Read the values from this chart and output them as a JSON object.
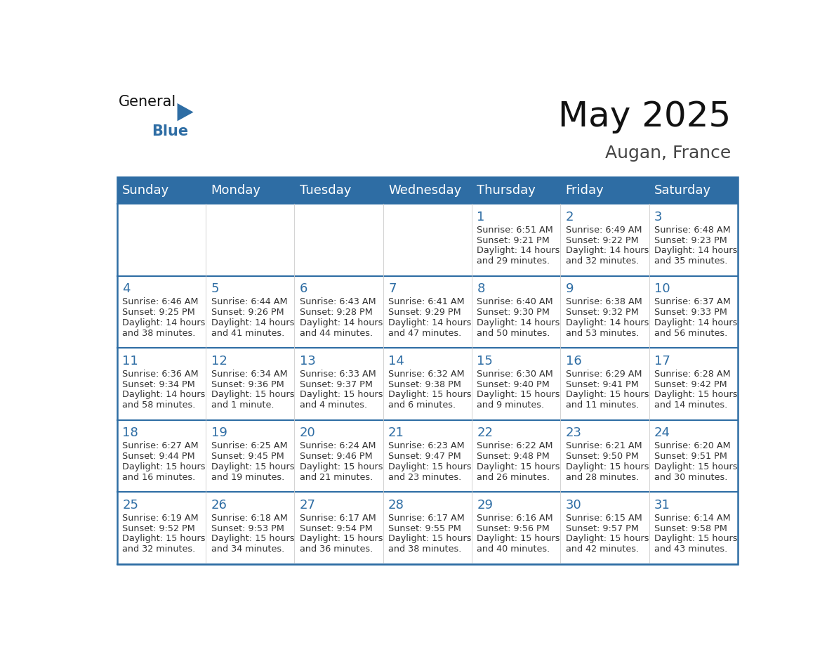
{
  "title": "May 2025",
  "subtitle": "Augan, France",
  "header_color": "#2E6DA4",
  "header_text_color": "#FFFFFF",
  "day_number_color": "#2E6DA4",
  "text_color": "#333333",
  "days_of_week": [
    "Sunday",
    "Monday",
    "Tuesday",
    "Wednesday",
    "Thursday",
    "Friday",
    "Saturday"
  ],
  "weeks": [
    [
      {
        "day": "",
        "sunrise": "",
        "sunset": "",
        "daylight": ""
      },
      {
        "day": "",
        "sunrise": "",
        "sunset": "",
        "daylight": ""
      },
      {
        "day": "",
        "sunrise": "",
        "sunset": "",
        "daylight": ""
      },
      {
        "day": "",
        "sunrise": "",
        "sunset": "",
        "daylight": ""
      },
      {
        "day": "1",
        "sunrise": "6:51 AM",
        "sunset": "9:21 PM",
        "daylight": "14 hours and 29 minutes."
      },
      {
        "day": "2",
        "sunrise": "6:49 AM",
        "sunset": "9:22 PM",
        "daylight": "14 hours and 32 minutes."
      },
      {
        "day": "3",
        "sunrise": "6:48 AM",
        "sunset": "9:23 PM",
        "daylight": "14 hours and 35 minutes."
      }
    ],
    [
      {
        "day": "4",
        "sunrise": "6:46 AM",
        "sunset": "9:25 PM",
        "daylight": "14 hours and 38 minutes."
      },
      {
        "day": "5",
        "sunrise": "6:44 AM",
        "sunset": "9:26 PM",
        "daylight": "14 hours and 41 minutes."
      },
      {
        "day": "6",
        "sunrise": "6:43 AM",
        "sunset": "9:28 PM",
        "daylight": "14 hours and 44 minutes."
      },
      {
        "day": "7",
        "sunrise": "6:41 AM",
        "sunset": "9:29 PM",
        "daylight": "14 hours and 47 minutes."
      },
      {
        "day": "8",
        "sunrise": "6:40 AM",
        "sunset": "9:30 PM",
        "daylight": "14 hours and 50 minutes."
      },
      {
        "day": "9",
        "sunrise": "6:38 AM",
        "sunset": "9:32 PM",
        "daylight": "14 hours and 53 minutes."
      },
      {
        "day": "10",
        "sunrise": "6:37 AM",
        "sunset": "9:33 PM",
        "daylight": "14 hours and 56 minutes."
      }
    ],
    [
      {
        "day": "11",
        "sunrise": "6:36 AM",
        "sunset": "9:34 PM",
        "daylight": "14 hours and 58 minutes."
      },
      {
        "day": "12",
        "sunrise": "6:34 AM",
        "sunset": "9:36 PM",
        "daylight": "15 hours and 1 minute."
      },
      {
        "day": "13",
        "sunrise": "6:33 AM",
        "sunset": "9:37 PM",
        "daylight": "15 hours and 4 minutes."
      },
      {
        "day": "14",
        "sunrise": "6:32 AM",
        "sunset": "9:38 PM",
        "daylight": "15 hours and 6 minutes."
      },
      {
        "day": "15",
        "sunrise": "6:30 AM",
        "sunset": "9:40 PM",
        "daylight": "15 hours and 9 minutes."
      },
      {
        "day": "16",
        "sunrise": "6:29 AM",
        "sunset": "9:41 PM",
        "daylight": "15 hours and 11 minutes."
      },
      {
        "day": "17",
        "sunrise": "6:28 AM",
        "sunset": "9:42 PM",
        "daylight": "15 hours and 14 minutes."
      }
    ],
    [
      {
        "day": "18",
        "sunrise": "6:27 AM",
        "sunset": "9:44 PM",
        "daylight": "15 hours and 16 minutes."
      },
      {
        "day": "19",
        "sunrise": "6:25 AM",
        "sunset": "9:45 PM",
        "daylight": "15 hours and 19 minutes."
      },
      {
        "day": "20",
        "sunrise": "6:24 AM",
        "sunset": "9:46 PM",
        "daylight": "15 hours and 21 minutes."
      },
      {
        "day": "21",
        "sunrise": "6:23 AM",
        "sunset": "9:47 PM",
        "daylight": "15 hours and 23 minutes."
      },
      {
        "day": "22",
        "sunrise": "6:22 AM",
        "sunset": "9:48 PM",
        "daylight": "15 hours and 26 minutes."
      },
      {
        "day": "23",
        "sunrise": "6:21 AM",
        "sunset": "9:50 PM",
        "daylight": "15 hours and 28 minutes."
      },
      {
        "day": "24",
        "sunrise": "6:20 AM",
        "sunset": "9:51 PM",
        "daylight": "15 hours and 30 minutes."
      }
    ],
    [
      {
        "day": "25",
        "sunrise": "6:19 AM",
        "sunset": "9:52 PM",
        "daylight": "15 hours and 32 minutes."
      },
      {
        "day": "26",
        "sunrise": "6:18 AM",
        "sunset": "9:53 PM",
        "daylight": "15 hours and 34 minutes."
      },
      {
        "day": "27",
        "sunrise": "6:17 AM",
        "sunset": "9:54 PM",
        "daylight": "15 hours and 36 minutes."
      },
      {
        "day": "28",
        "sunrise": "6:17 AM",
        "sunset": "9:55 PM",
        "daylight": "15 hours and 38 minutes."
      },
      {
        "day": "29",
        "sunrise": "6:16 AM",
        "sunset": "9:56 PM",
        "daylight": "15 hours and 40 minutes."
      },
      {
        "day": "30",
        "sunrise": "6:15 AM",
        "sunset": "9:57 PM",
        "daylight": "15 hours and 42 minutes."
      },
      {
        "day": "31",
        "sunrise": "6:14 AM",
        "sunset": "9:58 PM",
        "daylight": "15 hours and 43 minutes."
      }
    ]
  ]
}
